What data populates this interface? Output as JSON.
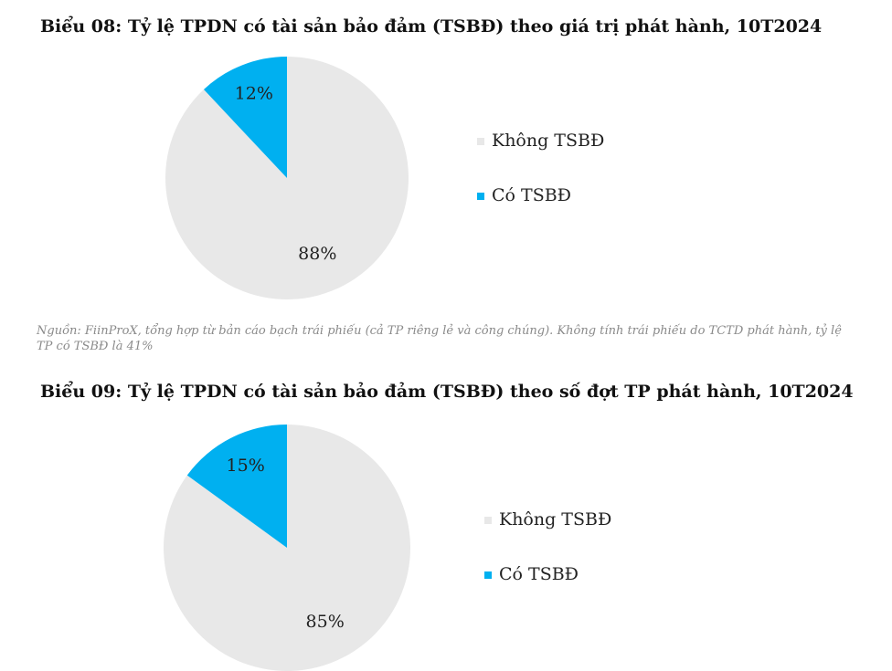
{
  "chart_data": [
    {
      "type": "pie",
      "title": "Biểu 08: Tỷ lệ TPDN có tài sản bảo đảm (TSBĐ) theo giá trị phát hành, 10T2024",
      "categories": [
        "Không TSBĐ",
        "Có TSBĐ"
      ],
      "values": [
        88,
        12
      ],
      "value_labels": [
        "88%",
        "12%"
      ],
      "colors": [
        "#e8e8e8",
        "#00b0f0"
      ],
      "legend": "right",
      "source": "Nguồn: FiinProX, tổng hợp từ bản cáo bạch trái phiếu (cả TP riêng lẻ và công chúng). Không tính trái phiếu do TCTD phát hành, tỷ lệ TP có TSBĐ là 41%"
    },
    {
      "type": "pie",
      "title": "Biểu 09: Tỷ lệ TPDN có tài sản bảo đảm (TSBĐ) theo số đợt TP phát hành, 10T2024",
      "categories": [
        "Không TSBĐ",
        "Có TSBĐ"
      ],
      "values": [
        85,
        15
      ],
      "value_labels": [
        "85%",
        "15%"
      ],
      "colors": [
        "#e8e8e8",
        "#00b0f0"
      ],
      "legend": "right"
    }
  ]
}
